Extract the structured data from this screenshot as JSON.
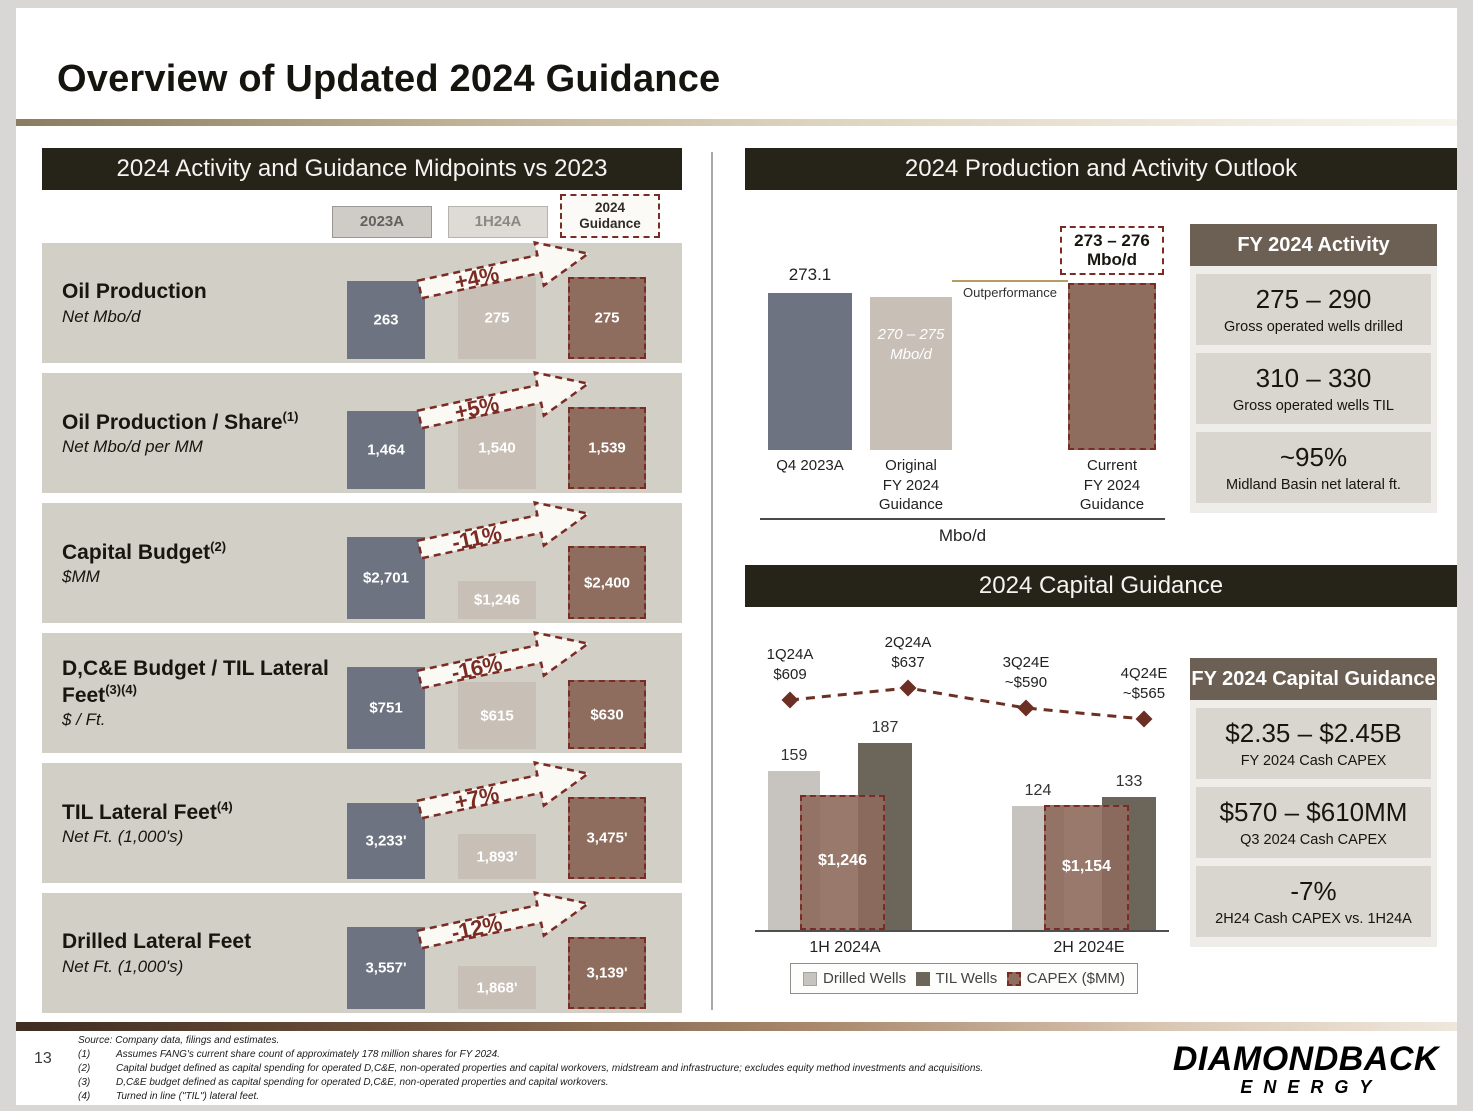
{
  "colors": {
    "accent_red": "#7a2b24",
    "header_dark": "#262419",
    "stat_header": "#6c6055",
    "row_bg": "#d2cfc7",
    "bar_2023a": "#6d7380",
    "bar_1h24a": "#c8bfb7",
    "bar_guidance": "#8e6c5e",
    "bar_drilled": "#c7c4bf",
    "bar_til": "#6b655a",
    "capex_line": "#6b2f23",
    "gold": "#b89a63"
  },
  "slide": {
    "title": "Overview of Updated 2024 Guidance",
    "page_number": "13"
  },
  "left_panel": {
    "header": "2024 Activity and Guidance Midpoints vs 2023",
    "legend": [
      {
        "label": "2023A",
        "style": "2023a"
      },
      {
        "label": "1H24A",
        "style": "1h24a"
      },
      {
        "label": "2024 Guidance",
        "style": "guidance"
      }
    ],
    "rows": [
      {
        "label": "Oil Production",
        "sup": "",
        "sublabel": "Net Mbo/d",
        "change": "+4%",
        "bars": [
          {
            "display": "263",
            "value": 263
          },
          {
            "display": "275",
            "value": 275
          },
          {
            "display": "275",
            "value": 275
          }
        ]
      },
      {
        "label": "Oil Production / Share",
        "sup": "(1)",
        "sublabel": "Net Mbo/d per MM",
        "change": "+5%",
        "bars": [
          {
            "display": "1,464",
            "value": 1464
          },
          {
            "display": "1,540",
            "value": 1540
          },
          {
            "display": "1,539",
            "value": 1539
          }
        ]
      },
      {
        "label": "Capital Budget",
        "sup": "(2)",
        "sublabel": "$MM",
        "change": "-11%",
        "bars": [
          {
            "display": "$2,701",
            "value": 2701
          },
          {
            "display": "$1,246",
            "value": 1246
          },
          {
            "display": "$2,400",
            "value": 2400
          }
        ]
      },
      {
        "label": "D,C&E Budget / TIL Lateral Feet",
        "sup": "(3)(4)",
        "sublabel": "$ / Ft.",
        "change": "-16%",
        "bars": [
          {
            "display": "$751",
            "value": 751
          },
          {
            "display": "$615",
            "value": 615
          },
          {
            "display": "$630",
            "value": 630
          }
        ]
      },
      {
        "label": "TIL Lateral Feet",
        "sup": "(4)",
        "sublabel": "Net Ft. (1,000's)",
        "change": "+7%",
        "bars": [
          {
            "display": "3,233'",
            "value": 3233
          },
          {
            "display": "1,893'",
            "value": 1893
          },
          {
            "display": "3,475'",
            "value": 3475
          }
        ]
      },
      {
        "label": "Drilled Lateral Feet",
        "sup": "",
        "sublabel": "Net Ft. (1,000's)",
        "change": "-12%",
        "bars": [
          {
            "display": "3,557'",
            "value": 3557
          },
          {
            "display": "1,868'",
            "value": 1868
          },
          {
            "display": "3,139'",
            "value": 3139
          }
        ]
      }
    ]
  },
  "outlook": {
    "header": "2024 Production and Activity Outlook",
    "outperformance_label": "Outperformance",
    "axis_label": "Mbo/d",
    "bars": [
      {
        "category": "Q4 2023A",
        "top_label": "273.1",
        "value": 273.1,
        "style": "2023a"
      },
      {
        "category": "Original\nFY 2024\nGuidance",
        "inner_label": "270 – 275 Mbo/d",
        "value": 272.5,
        "style": "1h24a"
      },
      {
        "category": "Current\nFY 2024\nGuidance",
        "box_label": "273 – 276 Mbo/d",
        "value": 274.5,
        "style": "guidance"
      }
    ]
  },
  "activity_panel": {
    "header": "FY 2024 Activity",
    "stats": [
      {
        "value": "275 – 290",
        "label": "Gross operated wells drilled"
      },
      {
        "value": "310 – 330",
        "label": "Gross operated wells TIL"
      },
      {
        "value": "~95%",
        "label": "Midland Basin net lateral ft."
      }
    ]
  },
  "capital": {
    "header": "2024 Capital Guidance",
    "line_points": [
      {
        "label": "1Q24A",
        "value_label": "$609",
        "value": 609
      },
      {
        "label": "2Q24A",
        "value_label": "$637",
        "value": 637
      },
      {
        "label": "3Q24E",
        "value_label": "~$590",
        "value": 590
      },
      {
        "label": "4Q24E",
        "value_label": "~$565",
        "value": 565
      }
    ],
    "groups": [
      {
        "category": "1H 2024A",
        "drilled": 159,
        "til": 187,
        "capex_display": "$1,246",
        "capex": 1246
      },
      {
        "category": "2H 2024E",
        "drilled": 124,
        "til": 133,
        "capex_display": "$1,154",
        "capex": 1154
      }
    ],
    "legend": [
      {
        "label": "Drilled Wells",
        "style": "drilled"
      },
      {
        "label": "TIL Wells",
        "style": "til"
      },
      {
        "label": "CAPEX ($MM)",
        "style": "capex"
      }
    ]
  },
  "capital_panel": {
    "header": "FY 2024 Capital Guidance",
    "stats": [
      {
        "value": "$2.35 – $2.45B",
        "label": "FY 2024 Cash CAPEX"
      },
      {
        "value": "$570 – $610MM",
        "label": "Q3 2024 Cash CAPEX"
      },
      {
        "value": "-7%",
        "label": "2H24 Cash CAPEX vs. 1H24A"
      }
    ]
  },
  "footer": {
    "source": "Source: Company data, filings and estimates.",
    "footnotes": [
      {
        "num": "(1)",
        "text": "Assumes FANG's current share count of approximately 178 million shares for FY 2024."
      },
      {
        "num": "(2)",
        "text": "Capital budget defined as capital spending for operated D,C&E, non-operated properties and capital workovers, midstream and infrastructure; excludes equity method investments and acquisitions."
      },
      {
        "num": "(3)",
        "text": "D,C&E budget defined as capital spending for operated D,C&E, non-operated properties and capital workovers."
      },
      {
        "num": "(4)",
        "text": "Turned in line (\"TIL\") lateral feet."
      }
    ],
    "logo_line1": "DIAMONDBACK",
    "logo_line2": "ENERGY"
  },
  "chart_data": [
    {
      "type": "bar",
      "title": "2024 Activity and Guidance Midpoints vs 2023",
      "categories": [
        "Oil Production (Net Mbo/d)",
        "Oil Production / Share (Net Mbo/d per MM)",
        "Capital Budget ($MM)",
        "D,C&E Budget / TIL Lateral Feet ($/Ft.)",
        "TIL Lateral Feet (Net Ft. 1,000's)",
        "Drilled Lateral Feet (Net Ft. 1,000's)"
      ],
      "series": [
        {
          "name": "2023A",
          "values": [
            263,
            1464,
            2701,
            751,
            3233,
            3557
          ]
        },
        {
          "name": "1H24A",
          "values": [
            275,
            1540,
            1246,
            615,
            1893,
            1868
          ]
        },
        {
          "name": "2024 Guidance",
          "values": [
            275,
            1539,
            2400,
            630,
            3475,
            3139
          ]
        }
      ],
      "annotations": [
        "+4%",
        "+5%",
        "-11%",
        "-16%",
        "+7%",
        "-12%"
      ],
      "legend_position": "top"
    },
    {
      "type": "bar",
      "title": "2024 Production and Activity Outlook",
      "categories": [
        "Q4 2023A",
        "Original FY 2024 Guidance",
        "Current FY 2024 Guidance"
      ],
      "values": [
        273.1,
        272.5,
        274.5
      ],
      "value_labels": [
        "273.1",
        "270 – 275 Mbo/d",
        "273 – 276 Mbo/d"
      ],
      "xlabel": "Mbo/d",
      "annotations": [
        "Outperformance"
      ]
    },
    {
      "type": "bar",
      "title": "2024 Capital Guidance",
      "categories": [
        "1H 2024A",
        "2H 2024E"
      ],
      "series": [
        {
          "name": "Drilled Wells",
          "values": [
            159,
            124
          ]
        },
        {
          "name": "TIL Wells",
          "values": [
            187,
            133
          ]
        },
        {
          "name": "CAPEX ($MM)",
          "values": [
            1246,
            1154
          ]
        }
      ],
      "line_series": {
        "name": "Quarterly CAPEX ($MM)",
        "x": [
          "1Q24A",
          "2Q24A",
          "3Q24E",
          "4Q24E"
        ],
        "values": [
          609,
          637,
          590,
          565
        ]
      },
      "legend_position": "bottom"
    }
  ]
}
